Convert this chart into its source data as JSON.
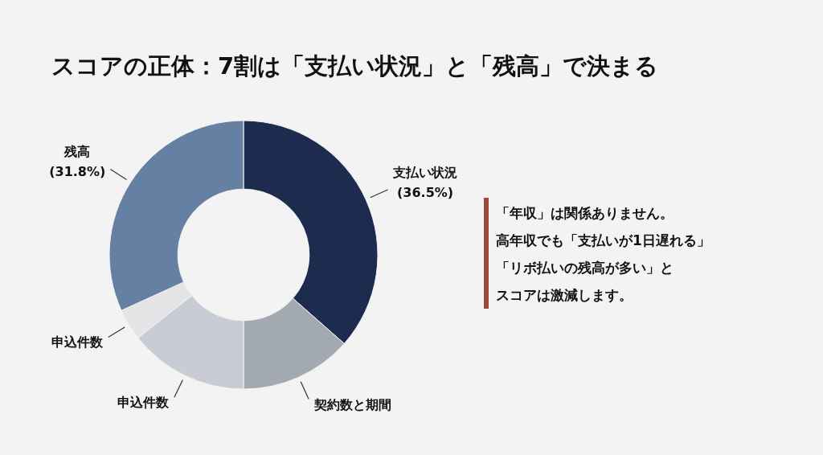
{
  "chart_data": {
    "type": "donut",
    "title": "スコアの正体：7割は「支払い状況」と「残高」で決まる",
    "categories": [
      "支払い状況",
      "契約数と期間",
      "申込件数",
      "申込件数",
      "残高"
    ],
    "values": [
      36.5,
      13.5,
      14.4,
      3.8,
      31.8
    ],
    "value_labels": [
      "(36.5%)",
      null,
      null,
      null,
      "(31.8%)"
    ],
    "colors": [
      "#1c2b4e",
      "#a3a9b1",
      "#c9ccd4",
      "#e3e4e6",
      "#6680a4"
    ],
    "annotations": [
      "「年収」は関係ありません。",
      "高年収でも「支払いが1日遅れる」",
      "「リボ払いの残高が多い」と",
      "スコアは激減します。"
    ]
  }
}
